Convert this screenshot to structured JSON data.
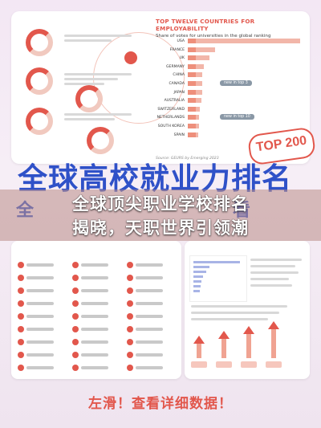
{
  "top_chart": {
    "title": "TOP TWELVE COUNTRIES FOR EMPLOYABILITY",
    "subtitle": "Share of votes for universities in the global ranking",
    "callout_1": "new in top 3",
    "callout_2": "new in top 10",
    "source": "Source: GEURS by Emerging 2023"
  },
  "chart_data": {
    "type": "bar",
    "categories": [
      "USA",
      "FRANCE",
      "UK",
      "GERMANY",
      "CHINA",
      "CANADA",
      "JAPAN",
      "AUSTRALIA",
      "SWITZERLAND",
      "NETHERLANDS",
      "SOUTH KOREA",
      "SPAIN"
    ],
    "values": [
      100,
      24,
      19,
      14,
      13,
      13,
      13,
      12,
      11,
      10,
      10,
      9
    ]
  },
  "badge": "TOP 200",
  "headline": "全球高校就业力排名",
  "mid_left": "全",
  "mid_right": "看",
  "overlay": {
    "line1": "全球顶尖职业学校排名",
    "line2": "揭晓，天职世界引领潮"
  },
  "cta": "左滑！查看详细数据！"
}
